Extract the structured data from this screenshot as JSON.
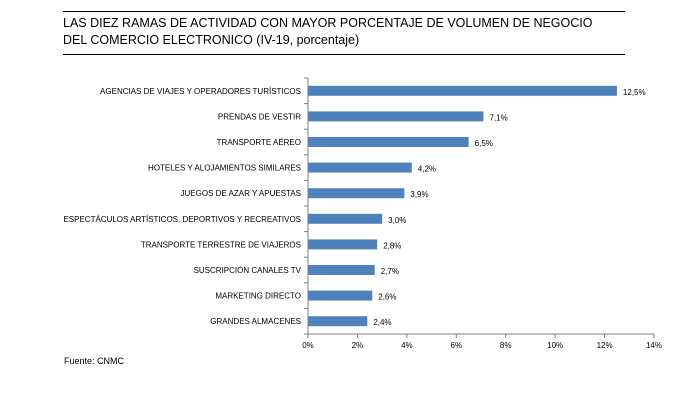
{
  "title_lines": [
    "LAS DIEZ RAMAS DE ACTIVIDAD CON MAYOR PORCENTAJE DE VOLUMEN DE NEGOCIO",
    "DEL COMERCIO ELECTRONICO (IV-19, porcentaje)"
  ],
  "source": "Fuente: CNMC",
  "chart_data": {
    "type": "bar",
    "orientation": "horizontal",
    "title": "LAS DIEZ RAMAS DE ACTIVIDAD CON MAYOR PORCENTAJE DE VOLUMEN DE NEGOCIO DEL COMERCIO ELECTRONICO (IV-19, porcentaje)",
    "categories": [
      "AGENCIAS DE VIAJES Y OPERADORES TURÍSTICOS",
      "PRENDAS DE VESTIR",
      "TRANSPORTE AÉREO",
      "HOTELES  Y ALOJAMIENTOS SIMILARES",
      "JUEGOS DE AZAR Y APUESTAS",
      "ESPECTÁCULOS ARTÍSTICOS, DEPORTIVOS Y RECREATIVOS",
      "TRANSPORTE TERRESTRE DE VIAJEROS",
      "SUSCRIPCIÓN CANALES TV",
      "MARKETING DIRECTO",
      "GRANDES ALMACENES"
    ],
    "values": [
      12.5,
      7.1,
      6.5,
      4.2,
      3.9,
      3.0,
      2.8,
      2.7,
      2.6,
      2.4
    ],
    "value_labels": [
      "12,5%",
      "7,1%",
      "6,5%",
      "4,2%",
      "3,9%",
      "3,0%",
      "2,8%",
      "2,7%",
      "2,6%",
      "2,4%"
    ],
    "xlim": [
      0,
      14
    ],
    "xticks": [
      0,
      2,
      4,
      6,
      8,
      10,
      12,
      14
    ],
    "xtick_labels": [
      "0%",
      "2%",
      "4%",
      "6%",
      "8%",
      "10%",
      "12%",
      "14%"
    ],
    "xlabel": "",
    "ylabel": "",
    "bar_color": "#4F81BD",
    "grid": false,
    "legend": "none"
  }
}
